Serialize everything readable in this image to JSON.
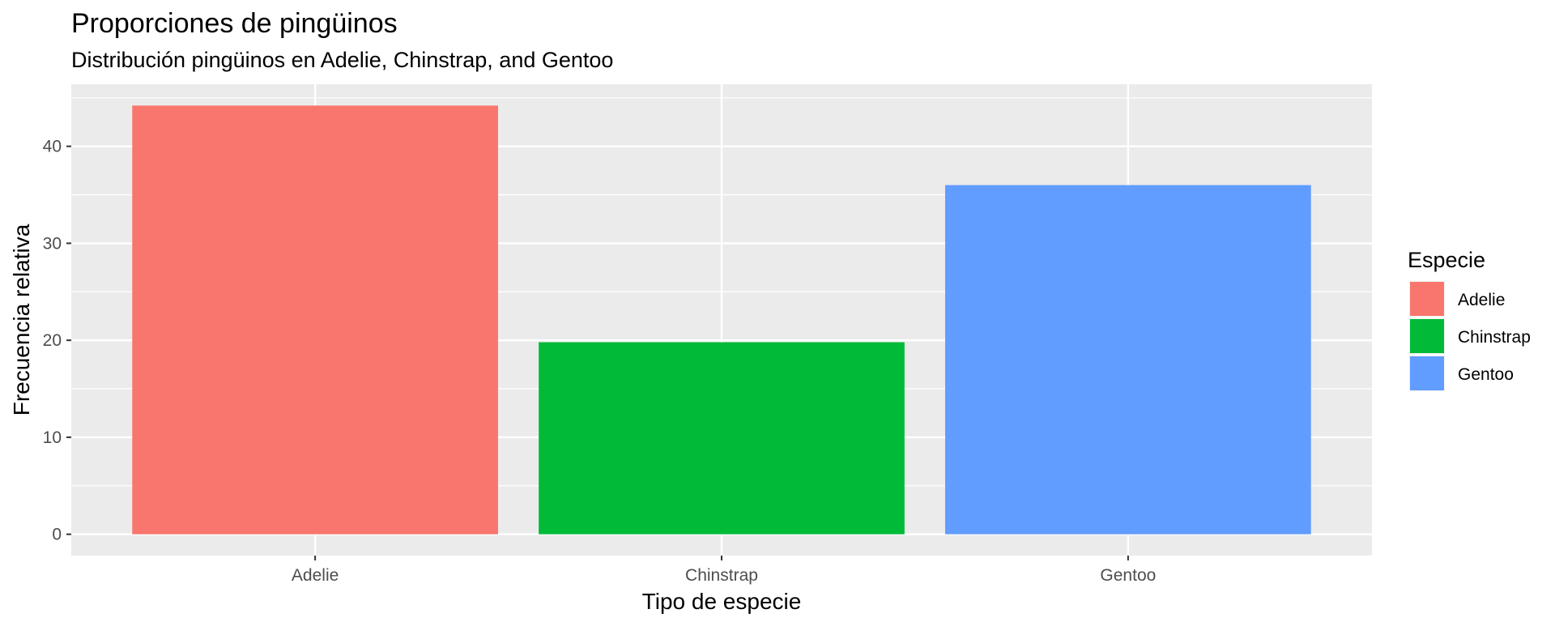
{
  "chart_data": {
    "type": "bar",
    "title": "Proporciones de pingüinos",
    "subtitle": "Distribución pingüinos en Adelie, Chinstrap, and Gentoo",
    "xlabel": "Tipo de especie",
    "ylabel": "Frecuencia relativa",
    "categories": [
      "Adelie",
      "Chinstrap",
      "Gentoo"
    ],
    "values": [
      44.2,
      19.8,
      36.0
    ],
    "colors": [
      "#F8766D",
      "#00BA38",
      "#619CFF"
    ],
    "ylim": [
      -2.2,
      46.4
    ],
    "yticks": [
      0,
      10,
      20,
      30,
      40
    ],
    "grid": true,
    "legend": {
      "title": "Especie",
      "position": "right",
      "entries": [
        "Adelie",
        "Chinstrap",
        "Gentoo"
      ]
    }
  }
}
